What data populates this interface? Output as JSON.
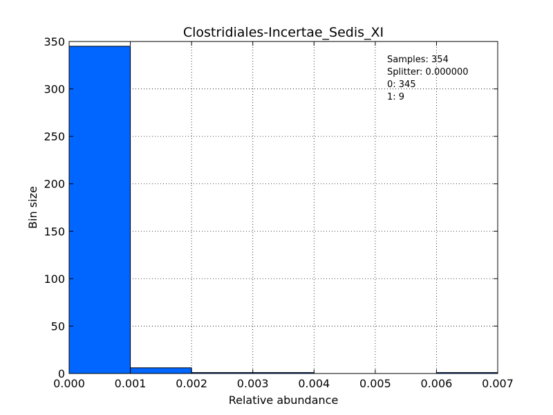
{
  "chart_data": {
    "type": "bar",
    "title": "Clostridiales-Incertae_Sedis_XI",
    "xlabel": "Relative abundance",
    "ylabel": "Bin size",
    "xlim": [
      0,
      0.007
    ],
    "ylim": [
      0,
      350
    ],
    "xticks": [
      "0.000",
      "0.001",
      "0.002",
      "0.003",
      "0.004",
      "0.005",
      "0.006",
      "0.007"
    ],
    "yticks": [
      "0",
      "50",
      "100",
      "150",
      "200",
      "250",
      "300",
      "350"
    ],
    "grid": true,
    "bar_color": "#0066ff",
    "bins": [
      {
        "x0": 0.0,
        "x1": 0.001,
        "value": 345
      },
      {
        "x0": 0.001,
        "x1": 0.002,
        "value": 6
      },
      {
        "x0": 0.002,
        "x1": 0.003,
        "value": 1
      },
      {
        "x0": 0.003,
        "x1": 0.004,
        "value": 1
      },
      {
        "x0": 0.004,
        "x1": 0.005,
        "value": 0
      },
      {
        "x0": 0.005,
        "x1": 0.006,
        "value": 0
      },
      {
        "x0": 0.006,
        "x1": 0.007,
        "value": 1
      }
    ],
    "annotations": [
      "Samples: 354",
      "Splitter: 0.000000",
      "0: 345",
      "1: 9"
    ]
  }
}
